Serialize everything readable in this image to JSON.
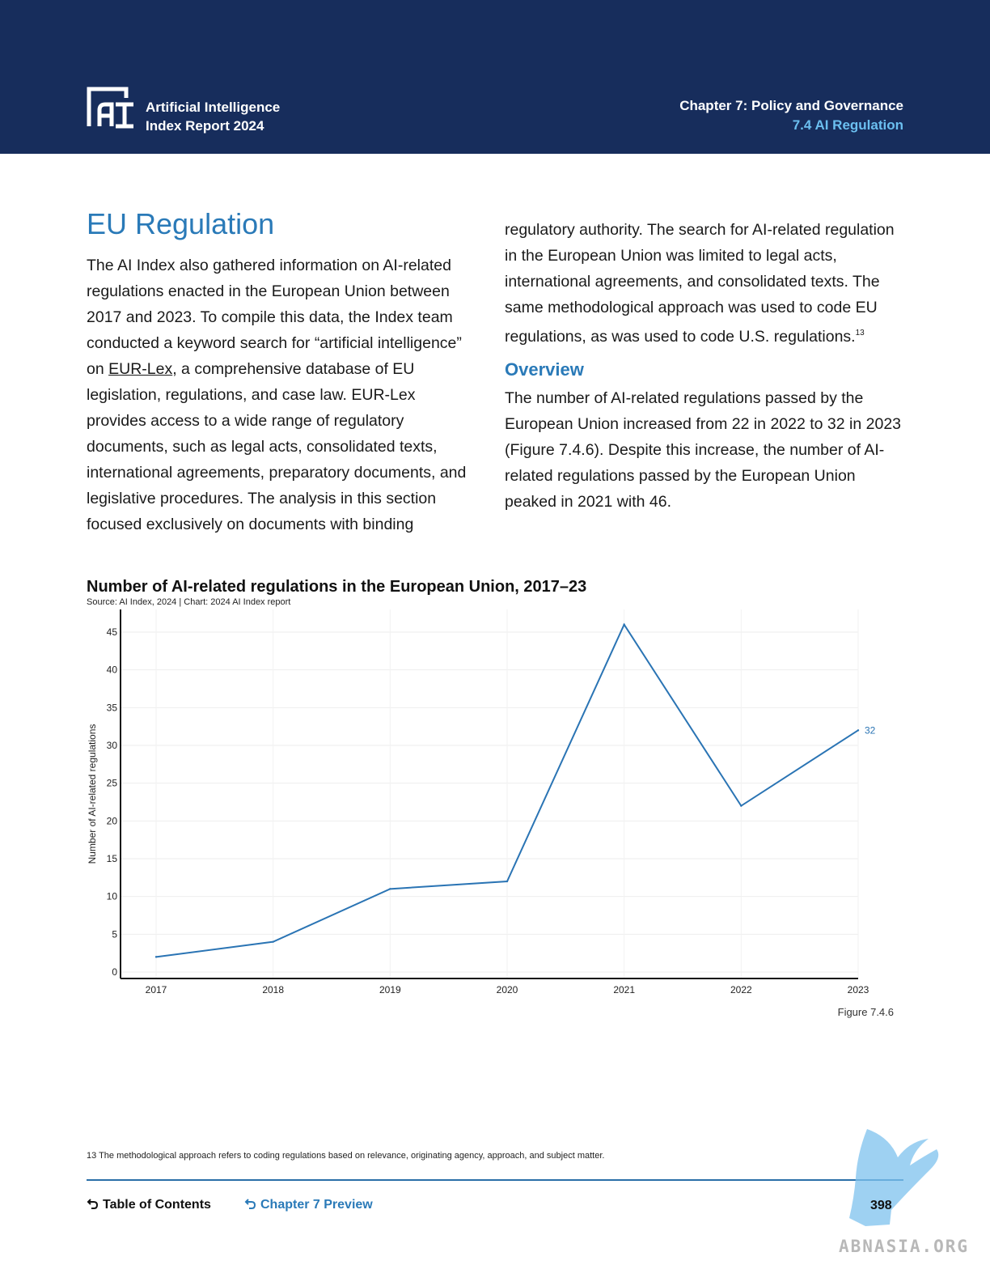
{
  "header": {
    "report_title_line1": "Artificial Intelligence",
    "report_title_line2": "Index Report 2024",
    "chapter": "Chapter 7: Policy and Governance",
    "section": "7.4 AI Regulation"
  },
  "section_title": "EU Regulation",
  "left_column": {
    "text_before_link": "The AI Index also gathered information on AI-related regulations enacted in the European Union between 2017 and 2023. To compile this data, the Index team conducted a keyword search for “artificial intelligence” on ",
    "link_text": "EUR-Lex",
    "text_after_link": ", a comprehensive database of EU legislation, regulations, and case law. EUR-Lex provides access to a wide range of regulatory documents, such as legal acts, consolidated texts, international agreements, preparatory documents, and legislative procedures. The analysis in this section focused exclusively on documents with binding"
  },
  "right_column": {
    "continuation": "regulatory authority. The search for AI-related regulation in the European Union was limited to legal acts, international agreements, and consolidated texts. The same methodological approach was used to code EU regulations, as was used to code U.S. regulations.",
    "footnote_ref": "13",
    "overview_heading": "Overview",
    "overview_text": "The number of AI-related regulations passed by the European Union increased from 22 in 2022 to 32 in 2023 (Figure 7.4.6). Despite this increase, the number of AI-related regulations passed by the European Union peaked in 2021 with 46."
  },
  "chart_data": {
    "type": "line",
    "title": "Number of AI-related regulations in the European Union, 2017–23",
    "subtitle": "Source: AI Index, 2024 | Chart: 2024 AI Index report",
    "ylabel": "Number of AI-related regulations",
    "xlabel": "",
    "x": [
      "2017",
      "2018",
      "2019",
      "2020",
      "2021",
      "2022",
      "2023"
    ],
    "series": [
      {
        "values": [
          2,
          4,
          11,
          12,
          46,
          22,
          32
        ],
        "color": "#2a74b4"
      }
    ],
    "end_label": "32",
    "ylim": [
      0,
      48
    ],
    "yticks": [
      0,
      5,
      10,
      15,
      20,
      25,
      30,
      35,
      40,
      45
    ],
    "grid": true
  },
  "figure_label": "Figure 7.4.6",
  "footnote": "13 The methodological approach refers to coding regulations based on relevance, originating agency, approach, and subject matter.",
  "footer": {
    "toc_label": "Table of Contents",
    "chapter_preview_label": "Chapter 7 Preview",
    "page_number": "398"
  },
  "watermark": {
    "text": "ABNASIA.ORG"
  }
}
